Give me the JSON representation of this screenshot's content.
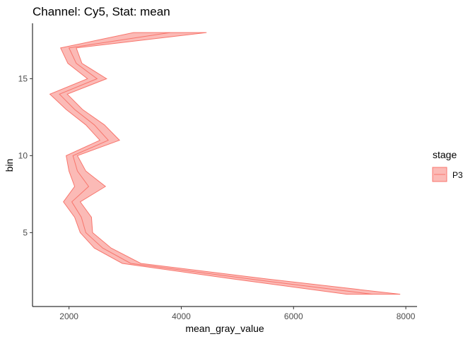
{
  "chart_data": {
    "type": "area",
    "title": "Channel: Cy5, Stat: mean",
    "xlabel": "mean_gray_value",
    "ylabel": "bin",
    "xlim": [
      1350,
      8200
    ],
    "ylim": [
      0.2,
      18.6
    ],
    "xticks": [
      2000,
      4000,
      6000,
      8000
    ],
    "yticks": [
      5,
      10,
      15
    ],
    "grid": false,
    "legend": {
      "title": "stage",
      "position": "right",
      "entries": [
        "P3"
      ]
    },
    "series": [
      {
        "name": "P3",
        "fill_color": "#F8766D",
        "fill_opacity": 0.5,
        "bin": [
          1,
          2,
          3,
          4,
          5,
          6,
          7,
          8,
          9,
          10,
          11,
          12,
          13,
          14,
          15,
          16,
          17,
          18
        ],
        "mean": [
          7400,
          5200,
          3100,
          2600,
          2300,
          2220,
          2050,
          2350,
          2150,
          2070,
          2700,
          2450,
          2100,
          1830,
          2500,
          2130,
          2000,
          3800
        ],
        "lower": [
          6950,
          4900,
          2950,
          2450,
          2200,
          2100,
          1900,
          2100,
          2000,
          1950,
          2550,
          2300,
          1950,
          1660,
          2330,
          1980,
          1850,
          3150
        ],
        "upper": [
          7900,
          5500,
          3280,
          2750,
          2420,
          2400,
          2200,
          2650,
          2300,
          2150,
          2900,
          2630,
          2240,
          1970,
          2670,
          2230,
          2130,
          4450
        ]
      }
    ]
  }
}
